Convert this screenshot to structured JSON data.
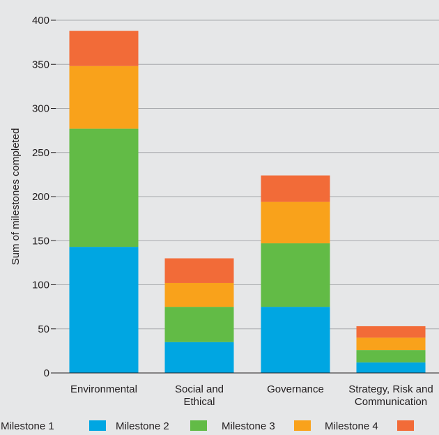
{
  "chart_data": {
    "type": "bar",
    "stacked": true,
    "categories": [
      "Environmental",
      "Social and Ethical",
      "Governance",
      "Strategy, Risk and Communication"
    ],
    "category_lines": [
      [
        "Environmental"
      ],
      [
        "Social and",
        "Ethical"
      ],
      [
        "Governance"
      ],
      [
        "Strategy, Risk and",
        "Communication"
      ]
    ],
    "series": [
      {
        "name": "Milestone 1",
        "color": "#00a6e2",
        "values": [
          143,
          35,
          75,
          12
        ]
      },
      {
        "name": "Milestone 2",
        "color": "#62bb46",
        "values": [
          134,
          40,
          72,
          14
        ]
      },
      {
        "name": "Milestone 3",
        "color": "#f9a21b",
        "values": [
          71,
          27,
          47,
          14
        ]
      },
      {
        "name": "Milestone 4",
        "color": "#f26b38",
        "values": [
          40,
          28,
          30,
          13
        ]
      }
    ],
    "ylabel": "Sum of milestones completed",
    "ylim": [
      0,
      400
    ],
    "yticks": [
      0,
      50,
      100,
      150,
      200,
      250,
      300,
      350,
      400
    ],
    "grid": true,
    "legend_position": "bottom"
  }
}
